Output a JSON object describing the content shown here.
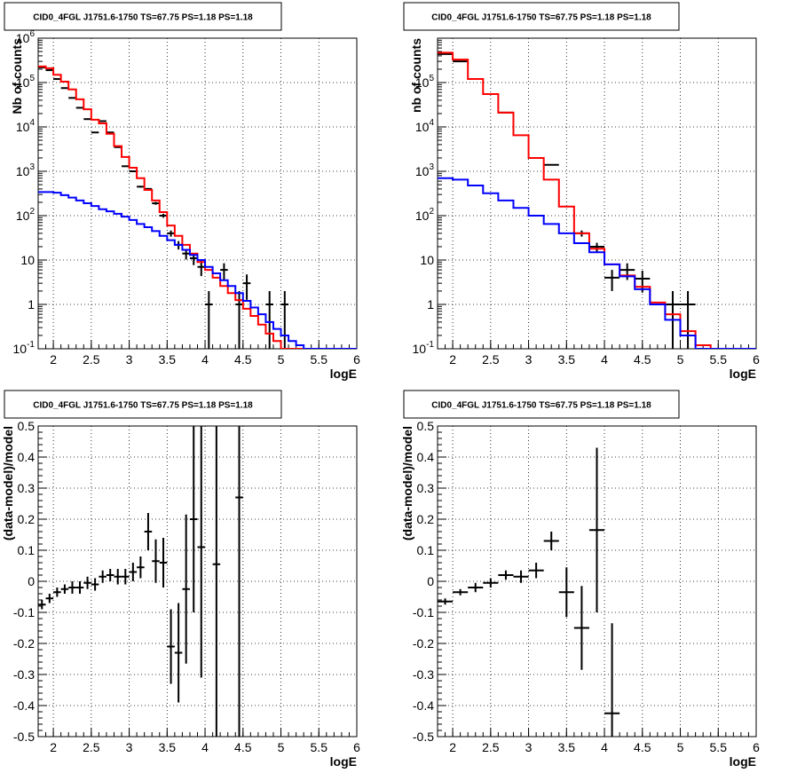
{
  "panel_title": "CID0_4FGL J1751.6-1750 TS=67.75 PS=1.18 PS=1.18",
  "colors": {
    "data": "#000000",
    "model_total": "#ff0000",
    "model_source": "#0000ff",
    "grid": "#000000"
  },
  "chart_data": [
    {
      "type": "line",
      "title": "CID0_4FGL J1751.6-1750 TS=67.75 PS=1.18 PS=1.18",
      "xlabel": "logE",
      "ylabel": "Nb of counts",
      "xlim": [
        1.8,
        6.0
      ],
      "ylim": [
        0.1,
        1000000
      ],
      "yscale": "log",
      "grid": true,
      "xticks": [
        "2",
        "2.5",
        "3",
        "3.5",
        "4",
        "4.5",
        "5",
        "5.5",
        "6"
      ],
      "yticks": [
        "10^-1",
        "1",
        "10",
        "10^2",
        "10^3",
        "10^4",
        "10^5",
        "10^6"
      ],
      "bin_edges": [
        1.8,
        1.9,
        2.0,
        2.1,
        2.2,
        2.3,
        2.4,
        2.5,
        2.6,
        2.7,
        2.8,
        2.9,
        3.0,
        3.1,
        3.2,
        3.3,
        3.4,
        3.5,
        3.6,
        3.7,
        3.8,
        3.9,
        4.0,
        4.1,
        4.2,
        4.3,
        4.4,
        4.5,
        4.6,
        4.7,
        4.8,
        4.9,
        5.0,
        5.1,
        5.2,
        5.3,
        5.4,
        5.5,
        5.6,
        5.7,
        5.8,
        5.9,
        6.0
      ],
      "series": [
        {
          "kind": "data",
          "x": [
            1.85,
            1.95,
            2.05,
            2.15,
            2.25,
            2.35,
            2.45,
            2.55,
            2.65,
            2.75,
            2.85,
            2.95,
            3.05,
            3.15,
            3.25,
            3.35,
            3.45,
            3.55,
            3.65,
            3.75,
            3.85,
            3.95,
            4.05,
            4.15,
            4.25,
            4.35,
            4.45,
            4.55,
            4.65,
            4.75,
            4.85,
            4.95,
            5.05
          ],
          "y": [
            220000,
            190000,
            120000,
            75000,
            45000,
            27000,
            15000,
            7500,
            13500,
            7500,
            3500,
            1300,
            1000,
            450,
            400,
            190,
            100,
            40,
            22,
            14,
            11,
            7,
            1,
            null,
            6,
            null,
            1,
            3,
            null,
            null,
            1,
            null,
            1
          ]
        },
        {
          "kind": "model_total",
          "y": [
            230000,
            210000,
            150000,
            105000,
            70000,
            42000,
            25000,
            14500,
            12000,
            7000,
            3700,
            2100,
            1200,
            700,
            380,
            220,
            120,
            60,
            35,
            22,
            14,
            9,
            6,
            4,
            2.6,
            1.8,
            1.25,
            0.8,
            0.55,
            0.35,
            0.22,
            0.15,
            0.1,
            0.1,
            0.1,
            0.1,
            0.1,
            0.1,
            0.1,
            0.1,
            0.1,
            0.1
          ]
        },
        {
          "kind": "model_source",
          "y": [
            340,
            340,
            330,
            290,
            255,
            220,
            190,
            165,
            140,
            125,
            110,
            95,
            80,
            65,
            55,
            45,
            35,
            28,
            22,
            17,
            13,
            10,
            7,
            5,
            3.5,
            2.6,
            1.8,
            1.2,
            0.85,
            0.6,
            0.4,
            0.28,
            0.2,
            0.15,
            0.12,
            0.1,
            0.1,
            0.1,
            0.1,
            0.1,
            0.1,
            0.1
          ]
        }
      ]
    },
    {
      "type": "line",
      "title": "CID0_4FGL J1751.6-1750 TS=67.75 PS=1.18 PS=1.18",
      "xlabel": "logE",
      "ylabel": "nb of counts",
      "xlim": [
        1.8,
        6.0
      ],
      "ylim": [
        0.1,
        1000000
      ],
      "yscale": "log",
      "grid": true,
      "xticks": [
        "2",
        "2.5",
        "3",
        "3.5",
        "4",
        "4.5",
        "5",
        "5.5",
        "6"
      ],
      "yticks": [
        "10^-1",
        "1",
        "10",
        "10^2",
        "10^3",
        "10^4",
        "10^5"
      ],
      "bin_edges": [
        1.8,
        2.0,
        2.2,
        2.4,
        2.6,
        2.8,
        3.0,
        3.2,
        3.4,
        3.6,
        3.8,
        4.0,
        4.2,
        4.4,
        4.6,
        4.8,
        5.0,
        5.2,
        5.4,
        5.6,
        5.8,
        6.0
      ],
      "series": [
        {
          "kind": "data",
          "x": [
            1.9,
            2.1,
            2.3,
            2.5,
            2.7,
            2.9,
            3.1,
            3.3,
            3.5,
            3.7,
            3.9,
            4.1,
            4.3,
            4.5,
            4.7,
            4.9,
            5.1
          ],
          "y": [
            440000,
            300000,
            null,
            null,
            21000,
            null,
            null,
            1400,
            null,
            40,
            20,
            4,
            6,
            3.8,
            null,
            1,
            1
          ]
        },
        {
          "kind": "model_total",
          "y": [
            470000,
            330000,
            120000,
            55000,
            21000,
            6500,
            2000,
            650,
            160,
            40,
            18,
            8,
            4.5,
            2.5,
            1.1,
            0.6,
            0.25,
            0.12,
            0.1,
            0.1,
            0.1
          ]
        },
        {
          "kind": "model_source",
          "y": [
            700,
            650,
            480,
            320,
            220,
            150,
            100,
            65,
            40,
            24,
            15,
            8,
            4.3,
            2.2,
            1.0,
            0.45,
            0.2,
            0.1,
            0.1,
            0.1,
            0.1
          ]
        }
      ]
    },
    {
      "type": "scatter",
      "title": "CID0_4FGL J1751.6-1750 TS=67.75 PS=1.18 PS=1.18",
      "xlabel": "logE",
      "ylabel": "(data-model)/model",
      "xlim": [
        1.8,
        6.0
      ],
      "ylim": [
        -0.5,
        0.5
      ],
      "grid": true,
      "xticks": [
        "2",
        "2.5",
        "3",
        "3.5",
        "4",
        "4.5",
        "5",
        "5.5",
        "6"
      ],
      "yticks": [
        "-0.5",
        "-0.4",
        "-0.3",
        "-0.2",
        "-0.1",
        "0",
        "0.1",
        "0.2",
        "0.3",
        "0.4",
        "0.5"
      ],
      "xhalf": 0.05,
      "x": [
        1.85,
        1.95,
        2.05,
        2.15,
        2.25,
        2.35,
        2.45,
        2.55,
        2.65,
        2.75,
        2.85,
        2.95,
        3.05,
        3.15,
        3.25,
        3.35,
        3.45,
        3.55,
        3.65,
        3.75,
        3.85,
        3.95,
        4.15,
        4.45
      ],
      "y": [
        -0.075,
        -0.055,
        -0.035,
        -0.025,
        -0.02,
        -0.02,
        -0.005,
        -0.01,
        0.015,
        0.02,
        0.015,
        0.015,
        0.03,
        0.045,
        0.16,
        0.065,
        0.06,
        -0.21,
        -0.23,
        -0.025,
        0.2,
        0.11,
        0.055,
        0.27
      ],
      "yerr": [
        0.015,
        0.015,
        0.015,
        0.015,
        0.02,
        0.02,
        0.02,
        0.02,
        0.02,
        0.02,
        0.025,
        0.025,
        0.03,
        0.035,
        0.06,
        0.07,
        0.08,
        0.12,
        0.16,
        0.24,
        0.3,
        0.42,
        0.6,
        0.8
      ]
    },
    {
      "type": "scatter",
      "title": "CID0_4FGL J1751.6-1750 TS=67.75 PS=1.18 PS=1.18",
      "xlabel": "logE",
      "ylabel": "(data-model)/model",
      "xlim": [
        1.8,
        6.0
      ],
      "ylim": [
        -0.5,
        0.5
      ],
      "grid": true,
      "xticks": [
        "2",
        "2.5",
        "3",
        "3.5",
        "4",
        "4.5",
        "5",
        "5.5",
        "6"
      ],
      "yticks": [
        "-0.5",
        "-0.4",
        "-0.3",
        "-0.2",
        "-0.1",
        "0",
        "0.1",
        "0.2",
        "0.3",
        "0.4",
        "0.5"
      ],
      "xhalf": 0.1,
      "x": [
        1.9,
        2.1,
        2.3,
        2.5,
        2.7,
        2.9,
        3.1,
        3.3,
        3.5,
        3.7,
        3.9,
        4.1
      ],
      "y": [
        -0.065,
        -0.035,
        -0.02,
        -0.005,
        0.02,
        0.015,
        0.035,
        0.13,
        -0.035,
        -0.15,
        0.165,
        -0.425
      ],
      "yerr": [
        0.01,
        0.01,
        0.015,
        0.015,
        0.015,
        0.02,
        0.025,
        0.03,
        0.08,
        0.135,
        0.265,
        0.29
      ]
    }
  ]
}
